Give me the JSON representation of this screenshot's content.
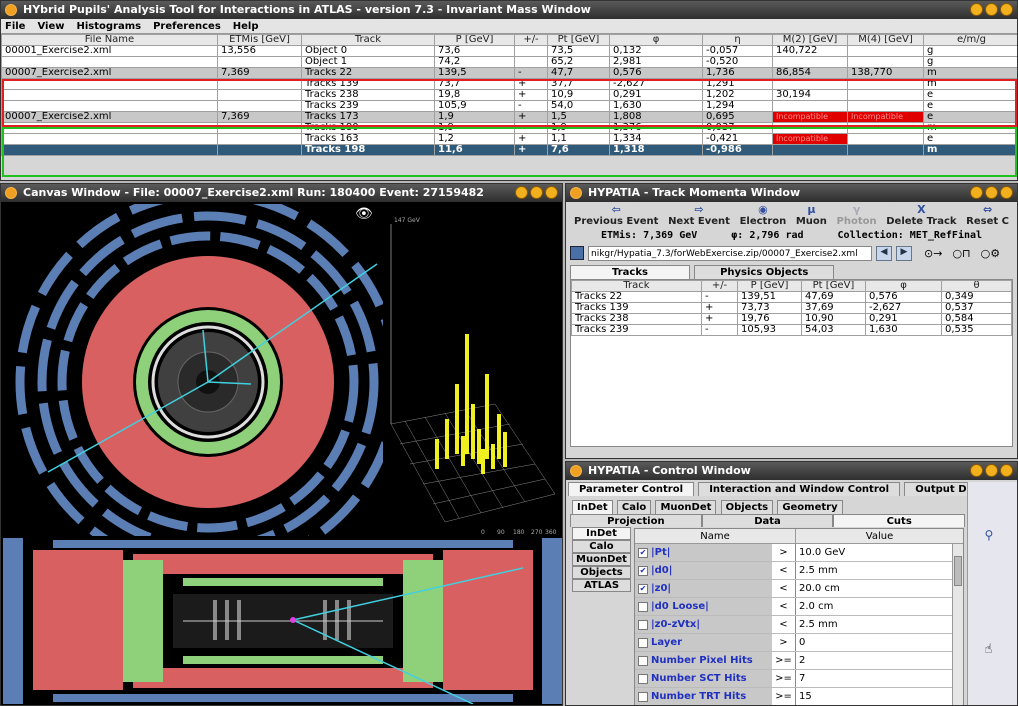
{
  "main": {
    "title": "HYbrid Pupils' Analysis Tool for Interactions in ATLAS - version 7.3 - Invariant Mass Window",
    "menu": [
      "File",
      "View",
      "Histograms",
      "Preferences",
      "Help"
    ],
    "columns": [
      "File Name",
      "ETMis [GeV]",
      "Track",
      "P [GeV]",
      "+/-",
      "Pt [GeV]",
      "φ",
      "η",
      "M(2) [GeV]",
      "M(4) [GeV]",
      "e/m/g"
    ],
    "rows": [
      [
        "00001_Exercise2.xml",
        "13,556",
        "Object 0",
        "73,6",
        "",
        "73,5",
        "0,132",
        "-0,057",
        "140,722",
        "",
        "g"
      ],
      [
        "",
        "",
        "Object 1",
        "74,2",
        "",
        "65,2",
        "2,981",
        "-0,520",
        "",
        "",
        "g"
      ],
      [
        "00007_Exercise2.xml",
        "7,369",
        "Tracks 22",
        "139,5",
        "-",
        "47,7",
        "0,576",
        "1,736",
        "86,854",
        "138,770",
        "m"
      ],
      [
        "",
        "",
        "Tracks 139",
        "73,7",
        "+",
        "37,7",
        "-2,627",
        "1,291",
        "",
        "",
        "m"
      ],
      [
        "",
        "",
        "Tracks 238",
        "19,8",
        "+",
        "10,9",
        "0,291",
        "1,202",
        "30,194",
        "",
        "e"
      ],
      [
        "",
        "",
        "Tracks 239",
        "105,9",
        "-",
        "54,0",
        "1,630",
        "1,294",
        "",
        "",
        "e"
      ],
      [
        "00007_Exercise2.xml",
        "7,369",
        "Tracks 173",
        "1,9",
        "+",
        "1,5",
        "1,808",
        "0,695",
        "Incompatible",
        "Incompatible",
        "e"
      ],
      [
        "",
        "",
        "Tracks 180",
        "1,9",
        "-",
        "1,9",
        "1,376",
        "0,037",
        "",
        "",
        "m"
      ],
      [
        "",
        "",
        "Tracks 163",
        "1,2",
        "+",
        "1,1",
        "1,334",
        "-0,421",
        "Incompatible",
        "",
        "e"
      ],
      [
        "",
        "",
        "Tracks 198",
        "11,6",
        "+",
        "7,6",
        "1,318",
        "-0,986",
        "",
        "",
        "m"
      ]
    ]
  },
  "canvas": {
    "title": "Canvas Window -  File: 00007_Exercise2.xml  Run: 180400  Event: 27159482",
    "lego_label": "147 GeV",
    "lego_ticks": [
      "0",
      "90",
      "180",
      "270",
      "360"
    ]
  },
  "momenta": {
    "title": "HYPATIA - Track Momenta Window",
    "buttons": [
      "Previous Event",
      "Next Event",
      "Electron",
      "Muon",
      "Photon",
      "Delete Track",
      "Reset C"
    ],
    "button_icons": [
      "⇦",
      "⇨",
      "◉",
      "μ",
      "γ",
      "X",
      "⇔"
    ],
    "etmis": "ETMis: 7,369 GeV",
    "phi": "φ: 2,796 rad",
    "collection": "Collection: MET_RefFinal",
    "path": "nikgr/Hypatia_7.3/forWebExercise.zip/00007_Exercise2.xml",
    "tabs": [
      "Tracks",
      "Physics Objects"
    ],
    "columns": [
      "Track",
      "+/-",
      "P [GeV]",
      "Pt [GeV]",
      "φ",
      "θ"
    ],
    "rows": [
      [
        "Tracks 22",
        "-",
        "139,51",
        "47,69",
        "0,576",
        "0,349"
      ],
      [
        "Tracks 139",
        "+",
        "73,73",
        "37,69",
        "-2,627",
        "0,537"
      ],
      [
        "Tracks 238",
        "+",
        "19,76",
        "10,90",
        "0,291",
        "0,584"
      ],
      [
        "Tracks 239",
        "-",
        "105,93",
        "54,03",
        "1,630",
        "0,535"
      ]
    ]
  },
  "control": {
    "title": "HYPATIA - Control Window",
    "tabs1": [
      "Parameter Control",
      "Interaction and Window Control",
      "Output Display"
    ],
    "tabs2": [
      "InDet",
      "Calo",
      "MuonDet",
      "Objects",
      "Geometry"
    ],
    "tabs3": [
      "Projection",
      "Data",
      "Cuts"
    ],
    "side_tabs": [
      "InDet",
      "Calo",
      "MuonDet",
      "Objects",
      "ATLAS"
    ],
    "col_name": "Name",
    "col_value": "Value",
    "cuts": [
      {
        "name": "|Pt|",
        "checked": true,
        "op": ">",
        "value": "10.0 GeV"
      },
      {
        "name": "|d0|",
        "checked": true,
        "op": "<",
        "value": "2.5 mm"
      },
      {
        "name": "|z0|",
        "checked": true,
        "op": "<",
        "value": "20.0 cm"
      },
      {
        "name": "|d0 Loose|",
        "checked": false,
        "op": "<",
        "value": "2.0 cm"
      },
      {
        "name": "|z0-zVtx|",
        "checked": false,
        "op": "<",
        "value": "2.5 mm"
      },
      {
        "name": "Layer",
        "checked": false,
        "op": ">",
        "value": "0"
      },
      {
        "name": "Number Pixel Hits",
        "checked": false,
        "op": ">=",
        "value": "2"
      },
      {
        "name": "Number SCT Hits",
        "checked": false,
        "op": ">=",
        "value": "7"
      },
      {
        "name": "Number TRT Hits",
        "checked": false,
        "op": ">=",
        "value": "15"
      }
    ]
  },
  "colors": {
    "red_group": "#e02020",
    "green_group": "#20c020",
    "selected_row": "#2f5a7a",
    "calo_red": "#d96060",
    "calo_green": "#8fd07a",
    "muon_blue": "#3a70b0",
    "track": "#40d0e0"
  }
}
